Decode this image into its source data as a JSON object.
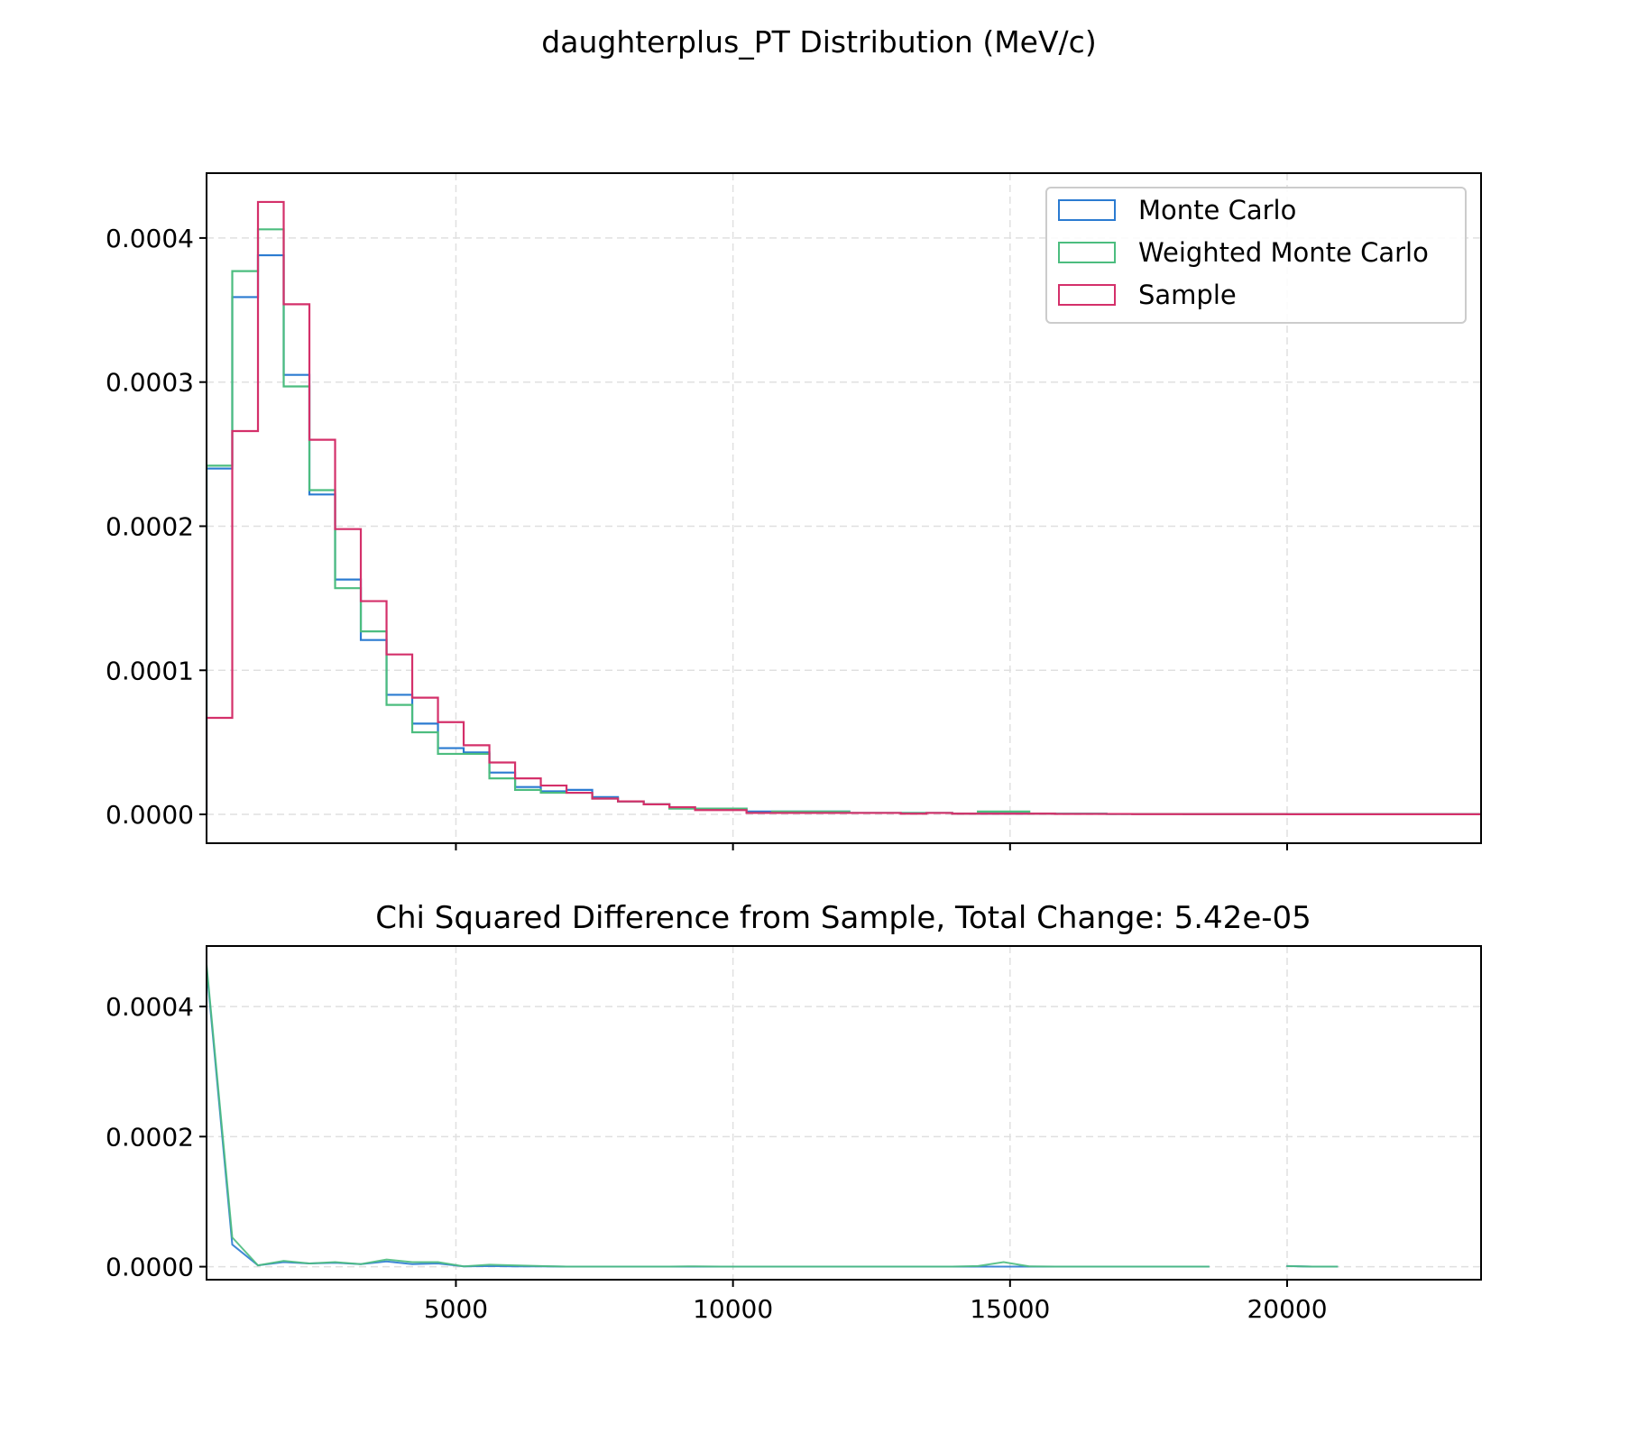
{
  "figure_title": "daughterplus_PT Distribution (MeV/c)",
  "colors": {
    "monte_carlo": "#2b7bd1",
    "weighted_monte_carlo": "#4cbd7f",
    "sample": "#d4306a",
    "grid": "#e0e0e0"
  },
  "chart_data": [
    {
      "type": "histogram",
      "title": "",
      "xlabel": "",
      "ylabel": "",
      "xlim": [
        500,
        23500
      ],
      "ylim": [
        -2e-05,
        0.000445
      ],
      "yticks": [
        "0.0000",
        "0.0001",
        "0.0002",
        "0.0003",
        "0.0004"
      ],
      "ytick_values": [
        0,
        0.0001,
        0.0002,
        0.0003,
        0.0004
      ],
      "xticks": [
        5000,
        10000,
        15000,
        20000
      ],
      "show_xtick_labels": false,
      "grid": true,
      "legend_position": "upper right",
      "bin_edges": [
        500,
        964,
        1428,
        1892,
        2356,
        2820,
        3284,
        3748,
        4212,
        4676,
        5140,
        5604,
        6068,
        6532,
        6996,
        7460,
        7924,
        8388,
        8852,
        9316,
        9780,
        10244,
        10708,
        11172,
        11636,
        12100,
        12564,
        13028,
        13492,
        13956,
        14420,
        14884,
        15348,
        15812,
        16276,
        16740,
        17204,
        17668,
        18132,
        18596,
        19060,
        19524,
        19988,
        20452,
        20916,
        21380,
        21844,
        22308,
        22772,
        23236,
        23700
      ],
      "series": [
        {
          "name": "Monte Carlo",
          "color_key": "monte_carlo",
          "values": [
            0.00024,
            0.000359,
            0.000388,
            0.000305,
            0.000222,
            0.000163,
            0.000121,
            8.3e-05,
            6.3e-05,
            4.6e-05,
            4.3e-05,
            2.9e-05,
            1.9e-05,
            1.6e-05,
            1.7e-05,
            1.2e-05,
            9e-06,
            7e-06,
            5e-06,
            4e-06,
            4e-06,
            2e-06,
            2e-06,
            2e-06,
            2e-06,
            1e-06,
            1e-06,
            1e-06,
            1e-06,
            5e-07,
            5e-07,
            5e-07,
            5e-07,
            4e-07,
            4e-07,
            3e-07,
            3e-07,
            3e-07,
            2e-07,
            2e-07,
            2e-07,
            1e-07,
            1e-07,
            1e-07,
            1e-07,
            1e-07,
            1e-07,
            1e-07,
            1e-07,
            1e-07
          ]
        },
        {
          "name": "Weighted Monte Carlo",
          "color_key": "weighted_monte_carlo",
          "values": [
            0.000242,
            0.000377,
            0.000406,
            0.000297,
            0.000225,
            0.000157,
            0.000127,
            7.6e-05,
            5.7e-05,
            4.2e-05,
            4.2e-05,
            2.5e-05,
            1.7e-05,
            1.5e-05,
            1.5e-05,
            1.1e-05,
            9e-06,
            7e-06,
            4e-06,
            4e-06,
            4e-06,
            1e-06,
            2e-06,
            2e-06,
            2e-06,
            1e-06,
            1e-06,
            1e-06,
            1e-06,
            5e-07,
            2e-06,
            2e-06,
            5e-07,
            4e-07,
            4e-07,
            3e-07,
            3e-07,
            3e-07,
            2e-07,
            2e-07,
            2e-07,
            1e-07,
            1e-07,
            1e-07,
            1e-07,
            1e-07,
            1e-07,
            1e-07,
            1e-07,
            1e-07
          ]
        },
        {
          "name": "Sample",
          "color_key": "sample",
          "values": [
            6.7e-05,
            0.000266,
            0.000425,
            0.000354,
            0.00026,
            0.000198,
            0.000148,
            0.000111,
            8.1e-05,
            6.4e-05,
            4.8e-05,
            3.6e-05,
            2.5e-05,
            2e-05,
            1.5e-05,
            1.1e-05,
            9e-06,
            7e-06,
            5e-06,
            3e-06,
            3e-06,
            1e-06,
            1e-06,
            1e-06,
            1e-06,
            1e-06,
            1e-06,
            5e-07,
            1e-06,
            5e-07,
            5e-07,
            5e-07,
            5e-07,
            3e-07,
            3e-07,
            3e-07,
            2e-07,
            2e-07,
            2e-07,
            2e-07,
            2e-07,
            2e-07,
            1e-07,
            1e-07,
            1e-07,
            1e-07,
            1e-07,
            1e-07,
            1e-07,
            1e-07
          ]
        }
      ]
    },
    {
      "type": "line",
      "title": "Chi Squared Difference from Sample, Total Change: 5.42e-05",
      "xlabel": "",
      "ylabel": "",
      "xlim": [
        500,
        23500
      ],
      "ylim": [
        -2e-05,
        0.000493
      ],
      "yticks": [
        "0.0000",
        "0.0002",
        "0.0004"
      ],
      "ytick_values": [
        0,
        0.0002,
        0.0004
      ],
      "xticks": [
        "5000",
        "10000",
        "15000",
        "20000"
      ],
      "xtick_values": [
        5000,
        10000,
        15000,
        20000
      ],
      "grid": true,
      "x": [
        500,
        964,
        1428,
        1892,
        2356,
        2820,
        3284,
        3748,
        4212,
        4676,
        5140,
        5604,
        6068,
        6532,
        6996,
        7460,
        7924,
        8388,
        8852,
        9316,
        9780,
        10244,
        10708,
        11172,
        11636,
        12100,
        12564,
        13028,
        13492,
        13956,
        14420,
        14884,
        15348,
        15812,
        16276,
        16740,
        17204,
        17668,
        18132,
        18596,
        19060,
        19524,
        19988,
        20452,
        20916
      ],
      "series": [
        {
          "name": "Monte Carlo",
          "color_key": "monte_carlo",
          "values": [
            0.00046,
            3.4e-05,
            2e-06,
            7e-06,
            5e-06,
            6e-06,
            4e-06,
            8e-06,
            4e-06,
            5e-06,
            5e-07,
            1e-06,
            5e-07,
            5e-07,
            1e-07,
            1e-07,
            1e-07,
            1e-07,
            1e-07,
            1e-07,
            1e-07,
            1e-07,
            1e-07,
            1e-07,
            1e-07,
            1e-07,
            1e-07,
            1e-07,
            1e-07,
            1e-07,
            1e-07,
            1e-07,
            1e-07,
            1e-07,
            1e-07,
            1e-07,
            1e-07,
            1e-07,
            1e-07,
            1e-07,
            null,
            null,
            1e-06,
            1e-07,
            1e-07
          ]
        },
        {
          "name": "Weighted Monte Carlo",
          "color_key": "weighted_monte_carlo",
          "values": [
            0.000465,
            4.5e-05,
            2e-06,
            9e-06,
            5e-06,
            7e-06,
            4e-06,
            1.1e-05,
            7e-06,
            7e-06,
            5e-07,
            3e-06,
            2e-06,
            1e-06,
            1e-07,
            1e-07,
            1e-07,
            1e-07,
            1e-07,
            5e-07,
            1e-07,
            1e-07,
            1e-07,
            1e-07,
            1e-07,
            1e-07,
            1e-07,
            1e-07,
            1e-07,
            1e-07,
            1e-06,
            7e-06,
            5e-07,
            1e-07,
            1e-07,
            1e-07,
            1e-07,
            1e-07,
            1e-07,
            1e-07,
            null,
            null,
            1e-06,
            1e-07,
            1e-07
          ]
        }
      ]
    }
  ]
}
